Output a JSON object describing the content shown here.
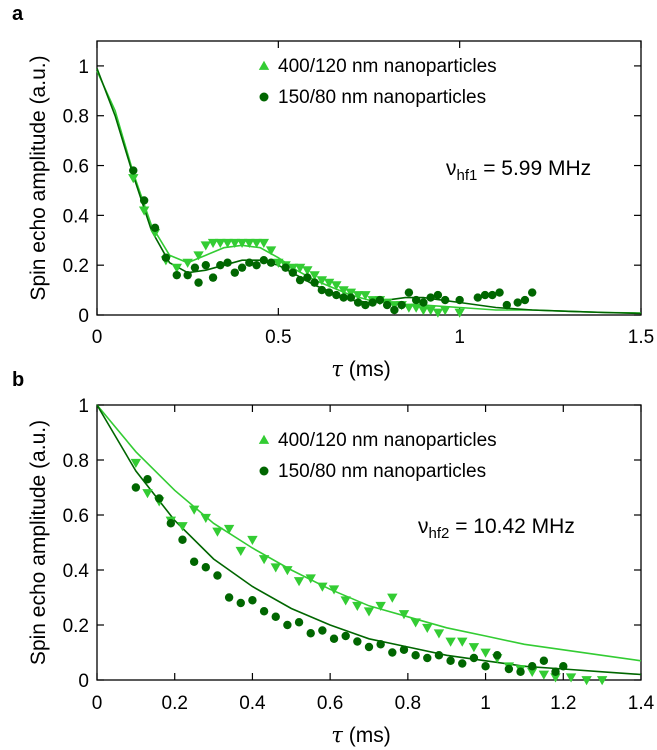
{
  "chart_data": [
    {
      "panel": "a",
      "type": "scatter",
      "xlabel_symbol": "τ",
      "xlabel_unit": " (ms)",
      "ylabel": "Spin echo amplitude (a.u.)",
      "xlim": [
        0,
        1.5
      ],
      "ylim": [
        0,
        1.1
      ],
      "xticks": [
        0,
        0.5,
        1,
        1.5
      ],
      "xtick_labels": [
        "0",
        "0.5",
        "1",
        "1.5"
      ],
      "yticks": [
        0,
        0.2,
        0.4,
        0.6,
        0.8,
        1
      ],
      "ytick_labels": [
        "0",
        "0.2",
        "0.4",
        "0.6",
        "0.8",
        "1"
      ],
      "annotation": {
        "symbol": "ν",
        "sub": "hf1",
        "rest": " = 5.99 MHz"
      },
      "legend_position": "top-right",
      "series": [
        {
          "name": "400/120 nm nanoparticles",
          "marker": "triangle-down",
          "legend_marker": "triangle-up",
          "color": "#33cc33",
          "points": [
            [
              0.1,
              0.55
            ],
            [
              0.13,
              0.42
            ],
            [
              0.16,
              0.33
            ],
            [
              0.19,
              0.22
            ],
            [
              0.22,
              0.19
            ],
            [
              0.25,
              0.21
            ],
            [
              0.28,
              0.24
            ],
            [
              0.3,
              0.28
            ],
            [
              0.32,
              0.29
            ],
            [
              0.34,
              0.29
            ],
            [
              0.36,
              0.29
            ],
            [
              0.38,
              0.29
            ],
            [
              0.4,
              0.29
            ],
            [
              0.42,
              0.29
            ],
            [
              0.44,
              0.29
            ],
            [
              0.46,
              0.29
            ],
            [
              0.48,
              0.26
            ],
            [
              0.5,
              0.21
            ],
            [
              0.52,
              0.2
            ],
            [
              0.54,
              0.19
            ],
            [
              0.56,
              0.19
            ],
            [
              0.58,
              0.18
            ],
            [
              0.6,
              0.16
            ],
            [
              0.62,
              0.14
            ],
            [
              0.64,
              0.13
            ],
            [
              0.66,
              0.12
            ],
            [
              0.68,
              0.1
            ],
            [
              0.7,
              0.09
            ],
            [
              0.72,
              0.08
            ],
            [
              0.74,
              0.08
            ],
            [
              0.76,
              0.06
            ],
            [
              0.78,
              0.06
            ],
            [
              0.8,
              0.05
            ],
            [
              0.82,
              0.04
            ],
            [
              0.84,
              0.04
            ],
            [
              0.86,
              0.03
            ],
            [
              0.88,
              0.03
            ],
            [
              0.9,
              0.02
            ],
            [
              0.92,
              0.02
            ],
            [
              0.94,
              0.01
            ],
            [
              0.96,
              0.02
            ],
            [
              1.0,
              0.01
            ]
          ],
          "fit": [
            [
              0.0,
              0.98
            ],
            [
              0.05,
              0.82
            ],
            [
              0.1,
              0.57
            ],
            [
              0.15,
              0.36
            ],
            [
              0.2,
              0.24
            ],
            [
              0.25,
              0.21
            ],
            [
              0.3,
              0.24
            ],
            [
              0.35,
              0.27
            ],
            [
              0.4,
              0.28
            ],
            [
              0.45,
              0.27
            ],
            [
              0.5,
              0.23
            ],
            [
              0.55,
              0.18
            ],
            [
              0.6,
              0.14
            ],
            [
              0.65,
              0.11
            ],
            [
              0.7,
              0.08
            ],
            [
              0.75,
              0.06
            ],
            [
              0.8,
              0.05
            ],
            [
              0.85,
              0.04
            ],
            [
              0.9,
              0.04
            ],
            [
              0.95,
              0.035
            ],
            [
              1.0,
              0.03
            ],
            [
              1.1,
              0.02
            ],
            [
              1.2,
              0.02
            ],
            [
              1.3,
              0.015
            ],
            [
              1.4,
              0.01
            ],
            [
              1.5,
              0.008
            ]
          ]
        },
        {
          "name": "150/80 nm nanoparticles",
          "marker": "circle",
          "legend_marker": "circle",
          "color": "#006600",
          "points": [
            [
              0.1,
              0.58
            ],
            [
              0.13,
              0.46
            ],
            [
              0.16,
              0.35
            ],
            [
              0.19,
              0.23
            ],
            [
              0.22,
              0.16
            ],
            [
              0.25,
              0.16
            ],
            [
              0.27,
              0.19
            ],
            [
              0.28,
              0.13
            ],
            [
              0.3,
              0.2
            ],
            [
              0.32,
              0.15
            ],
            [
              0.34,
              0.2
            ],
            [
              0.36,
              0.21
            ],
            [
              0.38,
              0.17
            ],
            [
              0.4,
              0.19
            ],
            [
              0.42,
              0.21
            ],
            [
              0.44,
              0.2
            ],
            [
              0.46,
              0.22
            ],
            [
              0.48,
              0.21
            ],
            [
              0.52,
              0.19
            ],
            [
              0.54,
              0.17
            ],
            [
              0.56,
              0.14
            ],
            [
              0.58,
              0.15
            ],
            [
              0.6,
              0.13
            ],
            [
              0.62,
              0.1
            ],
            [
              0.64,
              0.09
            ],
            [
              0.66,
              0.08
            ],
            [
              0.68,
              0.07
            ],
            [
              0.7,
              0.07
            ],
            [
              0.72,
              0.05
            ],
            [
              0.74,
              0.04
            ],
            [
              0.76,
              0.05
            ],
            [
              0.78,
              0.06
            ],
            [
              0.8,
              0.04
            ],
            [
              0.82,
              0.02
            ],
            [
              0.84,
              0.04
            ],
            [
              0.86,
              0.09
            ],
            [
              0.88,
              0.06
            ],
            [
              0.9,
              0.05
            ],
            [
              0.92,
              0.07
            ],
            [
              0.94,
              0.08
            ],
            [
              0.96,
              0.06
            ],
            [
              1.0,
              0.06
            ],
            [
              1.05,
              0.07
            ],
            [
              1.07,
              0.08
            ],
            [
              1.09,
              0.08
            ],
            [
              1.11,
              0.09
            ],
            [
              1.13,
              0.04
            ],
            [
              1.16,
              0.05
            ],
            [
              1.18,
              0.06
            ],
            [
              1.2,
              0.09
            ]
          ],
          "fit": [
            [
              0.0,
              0.99
            ],
            [
              0.05,
              0.8
            ],
            [
              0.1,
              0.56
            ],
            [
              0.15,
              0.34
            ],
            [
              0.2,
              0.21
            ],
            [
              0.25,
              0.17
            ],
            [
              0.3,
              0.18
            ],
            [
              0.35,
              0.2
            ],
            [
              0.4,
              0.22
            ],
            [
              0.45,
              0.22
            ],
            [
              0.5,
              0.2
            ],
            [
              0.55,
              0.16
            ],
            [
              0.6,
              0.12
            ],
            [
              0.65,
              0.09
            ],
            [
              0.7,
              0.06
            ],
            [
              0.75,
              0.05
            ],
            [
              0.8,
              0.06
            ],
            [
              0.85,
              0.07
            ],
            [
              0.9,
              0.07
            ],
            [
              0.95,
              0.06
            ],
            [
              1.0,
              0.05
            ],
            [
              1.1,
              0.03
            ],
            [
              1.2,
              0.02
            ],
            [
              1.3,
              0.015
            ],
            [
              1.4,
              0.01
            ],
            [
              1.5,
              0.006
            ]
          ]
        }
      ]
    },
    {
      "panel": "b",
      "type": "scatter",
      "xlabel_symbol": "τ",
      "xlabel_unit": " (ms)",
      "ylabel": "Spin echo amplitude (a.u.)",
      "xlim": [
        0,
        1.4
      ],
      "ylim": [
        0,
        1.0
      ],
      "xticks": [
        0,
        0.2,
        0.4,
        0.6,
        0.8,
        1,
        1.2,
        1.4
      ],
      "xtick_labels": [
        "0",
        "0.2",
        "0.4",
        "0.6",
        "0.8",
        "1",
        "1.2",
        "1.4"
      ],
      "yticks": [
        0,
        0.2,
        0.4,
        0.6,
        0.8,
        1
      ],
      "ytick_labels": [
        "0",
        "0.2",
        "0.4",
        "0.6",
        "0.8",
        "1"
      ],
      "annotation": {
        "symbol": "ν",
        "sub": "hf2",
        "rest": " = 10.42 MHz"
      },
      "legend_position": "top-right",
      "series": [
        {
          "name": "400/120 nm nanoparticles",
          "marker": "triangle-down",
          "legend_marker": "triangle-up",
          "color": "#33cc33",
          "points": [
            [
              0.1,
              0.79
            ],
            [
              0.13,
              0.68
            ],
            [
              0.16,
              0.65
            ],
            [
              0.19,
              0.58
            ],
            [
              0.22,
              0.56
            ],
            [
              0.25,
              0.62
            ],
            [
              0.28,
              0.59
            ],
            [
              0.31,
              0.54
            ],
            [
              0.34,
              0.55
            ],
            [
              0.37,
              0.47
            ],
            [
              0.4,
              0.51
            ],
            [
              0.43,
              0.44
            ],
            [
              0.46,
              0.41
            ],
            [
              0.49,
              0.4
            ],
            [
              0.52,
              0.36
            ],
            [
              0.55,
              0.37
            ],
            [
              0.58,
              0.34
            ],
            [
              0.61,
              0.33
            ],
            [
              0.64,
              0.29
            ],
            [
              0.67,
              0.27
            ],
            [
              0.7,
              0.25
            ],
            [
              0.73,
              0.27
            ],
            [
              0.76,
              0.3
            ],
            [
              0.79,
              0.24
            ],
            [
              0.82,
              0.21
            ],
            [
              0.85,
              0.19
            ],
            [
              0.88,
              0.17
            ],
            [
              0.91,
              0.14
            ],
            [
              0.94,
              0.14
            ],
            [
              0.97,
              0.12
            ],
            [
              1.0,
              0.1
            ],
            [
              1.03,
              0.08
            ],
            [
              1.06,
              0.05
            ],
            [
              1.09,
              0.04
            ],
            [
              1.12,
              0.03
            ],
            [
              1.15,
              0.02
            ],
            [
              1.18,
              0.01
            ],
            [
              1.22,
              0.01
            ],
            [
              1.26,
              0.0
            ],
            [
              1.3,
              0.0
            ]
          ],
          "fit": [
            [
              0.0,
              1.0
            ],
            [
              0.1,
              0.83
            ],
            [
              0.2,
              0.69
            ],
            [
              0.3,
              0.57
            ],
            [
              0.4,
              0.48
            ],
            [
              0.5,
              0.4
            ],
            [
              0.6,
              0.33
            ],
            [
              0.7,
              0.27
            ],
            [
              0.8,
              0.23
            ],
            [
              0.9,
              0.19
            ],
            [
              1.0,
              0.16
            ],
            [
              1.1,
              0.13
            ],
            [
              1.2,
              0.11
            ],
            [
              1.3,
              0.09
            ],
            [
              1.4,
              0.07
            ]
          ]
        },
        {
          "name": "150/80 nm nanoparticles",
          "marker": "circle",
          "legend_marker": "circle",
          "color": "#006600",
          "points": [
            [
              0.1,
              0.7
            ],
            [
              0.13,
              0.73
            ],
            [
              0.16,
              0.66
            ],
            [
              0.19,
              0.57
            ],
            [
              0.22,
              0.51
            ],
            [
              0.25,
              0.43
            ],
            [
              0.28,
              0.41
            ],
            [
              0.31,
              0.38
            ],
            [
              0.34,
              0.3
            ],
            [
              0.37,
              0.28
            ],
            [
              0.4,
              0.29
            ],
            [
              0.43,
              0.25
            ],
            [
              0.46,
              0.23
            ],
            [
              0.49,
              0.2
            ],
            [
              0.52,
              0.21
            ],
            [
              0.55,
              0.17
            ],
            [
              0.58,
              0.18
            ],
            [
              0.61,
              0.15
            ],
            [
              0.64,
              0.16
            ],
            [
              0.67,
              0.14
            ],
            [
              0.7,
              0.12
            ],
            [
              0.73,
              0.13
            ],
            [
              0.76,
              0.1
            ],
            [
              0.79,
              0.11
            ],
            [
              0.82,
              0.09
            ],
            [
              0.85,
              0.08
            ],
            [
              0.88,
              0.09
            ],
            [
              0.91,
              0.07
            ],
            [
              0.94,
              0.06
            ],
            [
              0.97,
              0.08
            ],
            [
              1.0,
              0.05
            ],
            [
              1.03,
              0.09
            ],
            [
              1.06,
              0.04
            ],
            [
              1.09,
              0.03
            ],
            [
              1.12,
              0.05
            ],
            [
              1.15,
              0.07
            ],
            [
              1.18,
              0.03
            ],
            [
              1.2,
              0.05
            ]
          ],
          "fit": [
            [
              0.0,
              1.0
            ],
            [
              0.1,
              0.76
            ],
            [
              0.2,
              0.58
            ],
            [
              0.3,
              0.44
            ],
            [
              0.4,
              0.34
            ],
            [
              0.5,
              0.26
            ],
            [
              0.6,
              0.2
            ],
            [
              0.7,
              0.15
            ],
            [
              0.8,
              0.12
            ],
            [
              0.9,
              0.09
            ],
            [
              1.0,
              0.07
            ],
            [
              1.1,
              0.05
            ],
            [
              1.2,
              0.04
            ],
            [
              1.3,
              0.03
            ],
            [
              1.4,
              0.02
            ]
          ]
        }
      ]
    }
  ]
}
